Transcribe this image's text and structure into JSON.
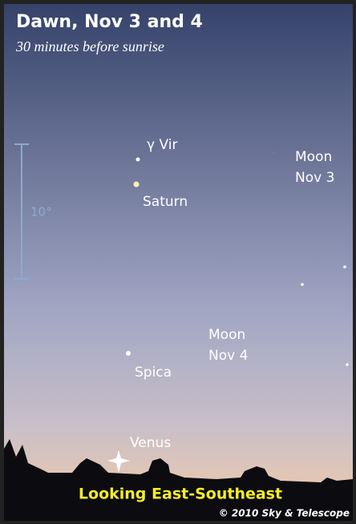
{
  "header": {
    "title": "Dawn, Nov 3 and 4",
    "subtitle": "30 minutes before sunrise"
  },
  "scale": {
    "label": "10°"
  },
  "objects": [
    {
      "label": [
        "γ Vir"
      ]
    },
    {
      "label": [
        "Saturn"
      ]
    },
    {
      "label": [
        "Moon",
        "Nov 3"
      ]
    },
    {
      "label": [
        "Moon",
        "Nov 4"
      ]
    },
    {
      "label": [
        "Spica"
      ]
    },
    {
      "label": [
        "Venus"
      ]
    }
  ],
  "footer": {
    "direction": "Looking East-Southeast",
    "credit": "© 2010 Sky & Telescope"
  }
}
